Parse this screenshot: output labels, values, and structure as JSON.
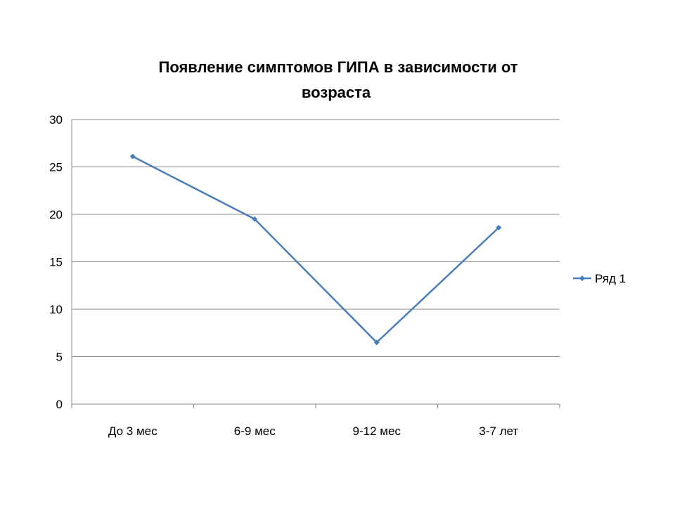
{
  "chart_data": {
    "type": "line",
    "title_lines": [
      "Появление симптомов ГИПА в зависимости от",
      "возраста"
    ],
    "categories": [
      "До 3 мес",
      "6-9 мес",
      "9-12 мес",
      "3-7 лет"
    ],
    "series": [
      {
        "name": "Ряд 1",
        "values": [
          26.1,
          19.5,
          6.5,
          18.6
        ],
        "color": "#4a7ebb"
      }
    ],
    "y_ticks": [
      "0",
      "5",
      "10",
      "15",
      "20",
      "25",
      "30"
    ],
    "ylim": [
      0,
      30
    ],
    "y_step": 5,
    "grid": true,
    "gridline_color": "#888888",
    "legend_position": "right",
    "marker": "diamond"
  }
}
